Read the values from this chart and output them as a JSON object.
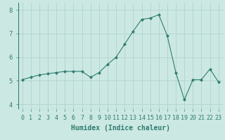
{
  "x": [
    0,
    1,
    2,
    3,
    4,
    5,
    6,
    7,
    8,
    9,
    10,
    11,
    12,
    13,
    14,
    15,
    16,
    17,
    18,
    19,
    20,
    21,
    22,
    23
  ],
  "y": [
    5.05,
    5.15,
    5.25,
    5.3,
    5.35,
    5.4,
    5.4,
    5.4,
    5.15,
    5.35,
    5.7,
    6.0,
    6.55,
    7.1,
    7.6,
    7.65,
    7.8,
    6.9,
    5.35,
    4.2,
    5.05,
    5.05,
    5.5,
    4.95
  ],
  "line_color": "#2e7d6e",
  "marker": "D",
  "marker_size": 2,
  "bg_color": "#cce8e3",
  "grid_color": "#aacfca",
  "xlabel": "Humidex (Indice chaleur)",
  "xlabel_fontsize": 7,
  "tick_fontsize": 6,
  "ylim": [
    3.8,
    8.3
  ],
  "xlim": [
    -0.5,
    23.5
  ],
  "yticks": [
    4,
    5,
    6,
    7,
    8
  ]
}
